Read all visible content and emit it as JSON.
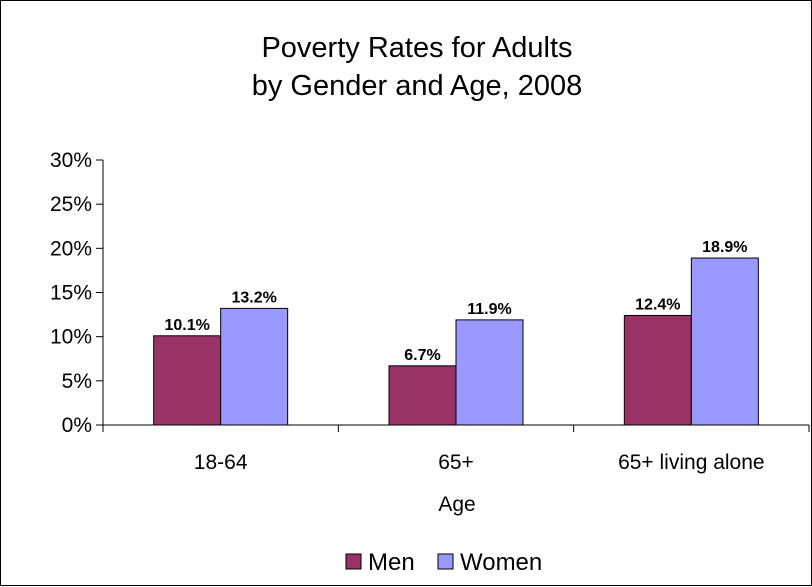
{
  "chart_data": {
    "type": "bar",
    "title": "Poverty Rates for Adults",
    "subtitle": "by Gender and Age, 2008",
    "xlabel": "Age",
    "ylabel": "",
    "categories": [
      "18-64",
      "65+",
      "65+ living alone"
    ],
    "series": [
      {
        "name": "Men",
        "values": [
          10.1,
          6.7,
          12.4
        ],
        "labels": [
          "10.1%",
          "6.7%",
          "12.4%"
        ],
        "color": "#993366"
      },
      {
        "name": "Women",
        "values": [
          13.2,
          11.9,
          18.9
        ],
        "labels": [
          "13.2%",
          "11.9%",
          "18.9%"
        ],
        "color": "#9999ff"
      }
    ],
    "ylim": [
      0,
      30
    ],
    "yticks": [
      0,
      5,
      10,
      15,
      20,
      25,
      30
    ],
    "ytick_labels": [
      "0%",
      "5%",
      "10%",
      "15%",
      "20%",
      "25%",
      "30%"
    ],
    "grid": false,
    "legend_position": "bottom"
  }
}
